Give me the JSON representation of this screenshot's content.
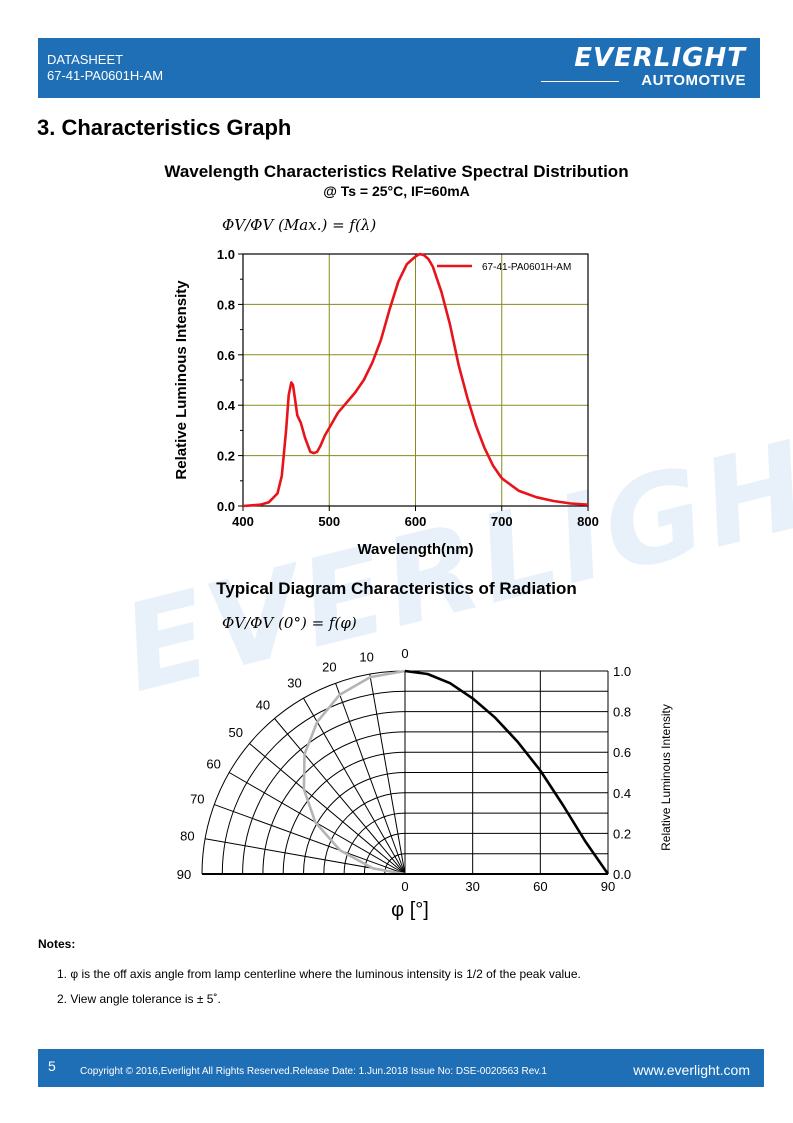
{
  "header": {
    "doc_type": "DATASHEET",
    "part_number": "67-41-PA0601H-AM",
    "logo_main": "EVERLIGHT",
    "logo_sub": "AUTOMOTIVE",
    "brand_color": "#1f6fb6"
  },
  "section_title": "3. Characteristics Graph",
  "spectral": {
    "title": "Wavelength Characteristics Relative Spectral Distribution",
    "subtitle": "@ Ts = 25°C, IF=60mA",
    "formula": "ΦV/ΦV (Max.) = f(λ)"
  },
  "radiation": {
    "title": "Typical Diagram Characteristics of Radiation",
    "formula": "ΦV/ΦV (0°) = f(φ)"
  },
  "watermark": "EVERLIGHT",
  "chart_data": [
    {
      "type": "line",
      "xlabel": "Wavelength(nm)",
      "ylabel": "Relative Luminous Intensity",
      "xlim": [
        400,
        800
      ],
      "ylim": [
        0,
        1.0
      ],
      "x_ticks": [
        "400",
        "500",
        "600",
        "700",
        "800"
      ],
      "y_ticks": [
        "0.0",
        "0.2",
        "0.4",
        "0.6",
        "0.8",
        "1.0"
      ],
      "grid": true,
      "legend": "top-right",
      "series": [
        {
          "name": "67-41-PA0601H-AM",
          "color": "#e8141c",
          "x": [
            400,
            420,
            430,
            440,
            445,
            450,
            453,
            456,
            458,
            460,
            463,
            467,
            472,
            478,
            482,
            486,
            490,
            495,
            500,
            510,
            520,
            530,
            540,
            550,
            560,
            570,
            580,
            590,
            600,
            605,
            610,
            615,
            620,
            630,
            640,
            650,
            660,
            670,
            680,
            690,
            700,
            720,
            740,
            760,
            780,
            800
          ],
          "y": [
            0.0,
            0.005,
            0.015,
            0.05,
            0.12,
            0.3,
            0.44,
            0.49,
            0.48,
            0.43,
            0.36,
            0.33,
            0.27,
            0.215,
            0.21,
            0.215,
            0.24,
            0.28,
            0.31,
            0.37,
            0.41,
            0.45,
            0.5,
            0.57,
            0.66,
            0.78,
            0.89,
            0.96,
            0.99,
            1.0,
            0.995,
            0.98,
            0.95,
            0.85,
            0.72,
            0.56,
            0.43,
            0.32,
            0.23,
            0.16,
            0.11,
            0.06,
            0.035,
            0.02,
            0.01,
            0.005
          ]
        }
      ]
    },
    {
      "type": "line",
      "xlabel": "φ [°]",
      "ylabel": "Relative Luminous Intensity",
      "xlim": [
        0,
        90
      ],
      "ylim": [
        0,
        1.0
      ],
      "x_ticks": [
        "0",
        "30",
        "60",
        "90"
      ],
      "y_ticks": [
        "0.0",
        "0.2",
        "0.4",
        "0.6",
        "0.8",
        "1.0"
      ],
      "polar_angles": [
        "0",
        "10",
        "20",
        "30",
        "40",
        "50",
        "60",
        "70",
        "80",
        "90"
      ],
      "grid": true,
      "series": [
        {
          "x": [
            0,
            10,
            20,
            30,
            40,
            50,
            60,
            70,
            80,
            90
          ],
          "y": [
            1.0,
            0.985,
            0.94,
            0.865,
            0.77,
            0.65,
            0.51,
            0.34,
            0.16,
            0.0
          ]
        }
      ]
    }
  ],
  "notes": {
    "title": "Notes:",
    "items": [
      "1. φ is the off axis angle from lamp centerline where the luminous intensity is 1/2 of the peak value.",
      "2. View angle tolerance is ± 5˚."
    ]
  },
  "footer": {
    "page": "5",
    "copyright": "Copyright © 2016,Everlight All Rights Reserved.Release Date: 1.Jun.2018 Issue No: DSE-0020563 Rev.1",
    "website": "www.everlight.com"
  }
}
